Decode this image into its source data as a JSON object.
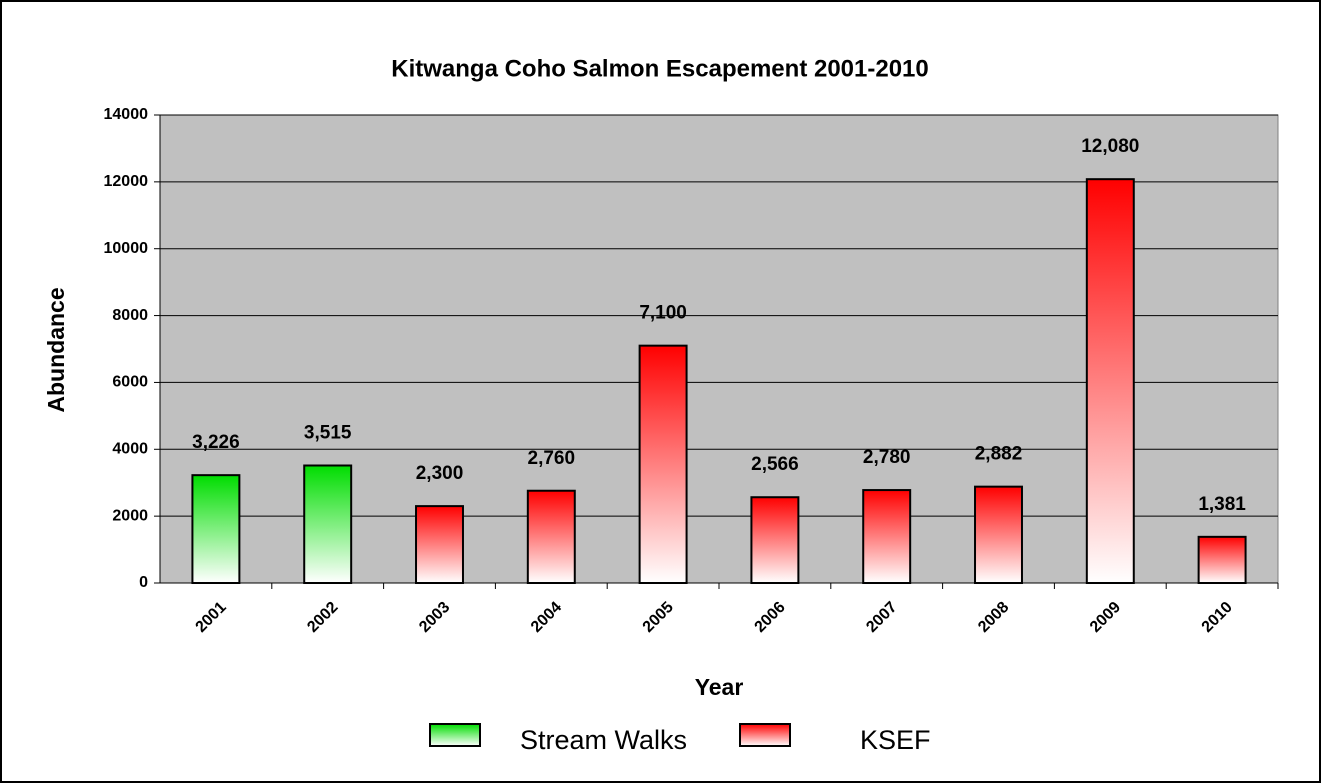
{
  "chart_data": {
    "type": "bar",
    "title": "Kitwanga Coho Salmon Escapement  2001-2010",
    "x_label": "Year",
    "y_label": "Abundance",
    "categories": [
      "2001",
      "2002",
      "2003",
      "2004",
      "2005",
      "2006",
      "2007",
      "2008",
      "2009",
      "2010"
    ],
    "series": [
      {
        "name": "Stream Walks",
        "color": "#00dd00",
        "values": [
          3226,
          3515,
          null,
          null,
          null,
          null,
          null,
          null,
          null,
          null
        ],
        "value_labels": [
          "3,226",
          "3,515",
          null,
          null,
          null,
          null,
          null,
          null,
          null,
          null
        ]
      },
      {
        "name": "KSEF",
        "color": "#ff0000",
        "values": [
          null,
          null,
          2300,
          2760,
          7100,
          2566,
          2780,
          2882,
          12080,
          1381
        ],
        "value_labels": [
          null,
          null,
          "2,300",
          "2,760",
          "7,100",
          "2,566",
          "2,780",
          "2,882",
          "12,080",
          "1,381"
        ]
      }
    ],
    "ylim": [
      0,
      14000
    ],
    "yticks": [
      0,
      2000,
      4000,
      6000,
      8000,
      10000,
      12000,
      14000
    ],
    "grid": true,
    "legend": "bottom"
  }
}
